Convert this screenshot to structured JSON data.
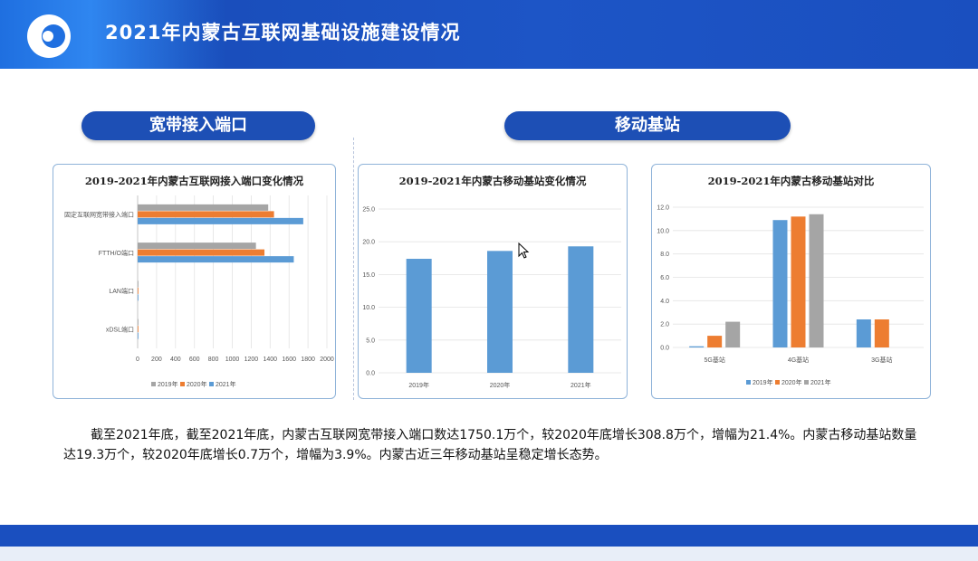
{
  "page": {
    "title": "2021年内蒙古互联网基础设施建设情况"
  },
  "sections": {
    "broadband_label": "宽带接入端口",
    "mobile_label": "移动基站"
  },
  "summary_text": "截至2021年底，截至2021年底，内蒙古互联网宽带接入端口数达1750.1万个，较2020年底增长308.8万个，增幅为21.4%。内蒙古移动基站数量达19.3万个，较2020年底增长0.7万个，增幅为3.9%。内蒙古近三年移动基站呈稳定增长态势。",
  "colors": {
    "header": "#1a4fbf",
    "s2019": "#a5a5a5",
    "s2020": "#ed7d31",
    "s2021": "#5b9bd5"
  },
  "chart_data": [
    {
      "type": "bar",
      "orientation": "horizontal",
      "title": "2019-2021年内蒙古互联网接入端口变化情况",
      "categories": [
        "固定互联网宽带接入端口",
        "FTTH/O端口",
        "LAN端口",
        "xDSL端口"
      ],
      "series": [
        {
          "name": "2019年",
          "color": "#a5a5a5",
          "values": [
            1380,
            1250,
            8,
            3
          ]
        },
        {
          "name": "2020年",
          "color": "#ed7d31",
          "values": [
            1441,
            1340,
            6,
            2
          ]
        },
        {
          "name": "2021年",
          "color": "#5b9bd5",
          "values": [
            1750.1,
            1650,
            5,
            2
          ]
        }
      ],
      "xlim": [
        0,
        2000
      ],
      "xticks": [
        "0",
        "200",
        "400",
        "600",
        "800",
        "1000",
        "1200",
        "1400",
        "1600",
        "1800",
        "2000"
      ],
      "legend": "bottom",
      "grid": true
    },
    {
      "type": "bar",
      "title": "2019-2021年内蒙古移动基站变化情况",
      "categories": [
        "2019年",
        "2020年",
        "2021年"
      ],
      "series": [
        {
          "color": "#5b9bd5",
          "values": [
            17.4,
            18.6,
            19.3
          ]
        }
      ],
      "ylim": [
        0,
        25
      ],
      "yticks": [
        "0.0",
        "5.0",
        "10.0",
        "15.0",
        "20.0",
        "25.0"
      ],
      "grid": true
    },
    {
      "type": "bar",
      "title": "2019-2021年内蒙古移动基站对比",
      "categories": [
        "5G基站",
        "4G基站",
        "3G基站"
      ],
      "series": [
        {
          "name": "2019年",
          "color": "#5b9bd5",
          "values": [
            0.1,
            10.9,
            2.4
          ]
        },
        {
          "name": "2020年",
          "color": "#ed7d31",
          "values": [
            1.0,
            11.2,
            2.4
          ]
        },
        {
          "name": "2021年",
          "color": "#a5a5a5",
          "values": [
            2.2,
            11.4,
            0
          ]
        }
      ],
      "ylim": [
        0,
        12
      ],
      "yticks": [
        "0.0",
        "2.0",
        "4.0",
        "6.0",
        "8.0",
        "10.0",
        "12.0"
      ],
      "legend": "bottom",
      "grid": true
    }
  ]
}
